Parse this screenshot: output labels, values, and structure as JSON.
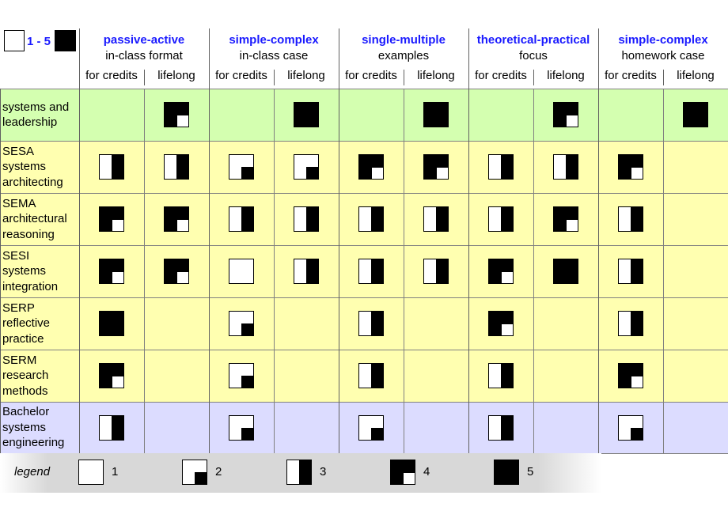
{
  "scale": {
    "label": "1 - 5"
  },
  "dimensions": [
    {
      "title": "passive-active",
      "subtitle": "in-class format"
    },
    {
      "title": "simple-complex",
      "subtitle": "in-class case"
    },
    {
      "title": "single-multiple",
      "subtitle": "examples"
    },
    {
      "title": "theoretical-practical",
      "subtitle": "focus"
    },
    {
      "title": "simple-complex",
      "subtitle": "homework case"
    }
  ],
  "subcolumns": [
    "for credits",
    "lifelong"
  ],
  "rows": [
    {
      "lines": [
        "systems and",
        "leadership"
      ],
      "values": [
        0,
        4,
        0,
        5,
        0,
        5,
        0,
        4,
        0,
        5
      ]
    },
    {
      "lines": [
        "SESA",
        "systems",
        "architecting"
      ],
      "values": [
        3,
        3,
        2,
        2,
        4,
        4,
        3,
        3,
        4,
        0
      ]
    },
    {
      "lines": [
        "SEMA",
        "architectural",
        "reasoning"
      ],
      "values": [
        4,
        4,
        3,
        3,
        3,
        3,
        3,
        4,
        3,
        0
      ]
    },
    {
      "lines": [
        "SESI",
        "systems",
        "integration"
      ],
      "values": [
        4,
        4,
        1,
        3,
        3,
        3,
        4,
        5,
        3,
        0
      ]
    },
    {
      "lines": [
        "SERP",
        "reflective",
        "practice"
      ],
      "values": [
        5,
        0,
        2,
        0,
        3,
        0,
        4,
        0,
        3,
        0
      ]
    },
    {
      "lines": [
        "SERM",
        "research",
        "methods"
      ],
      "values": [
        4,
        0,
        2,
        0,
        3,
        0,
        3,
        0,
        4,
        0
      ]
    },
    {
      "lines": [
        "Bachelor",
        "systems",
        "engineering"
      ],
      "values": [
        3,
        0,
        2,
        0,
        2,
        0,
        3,
        0,
        2,
        0
      ]
    }
  ],
  "row_colors": [
    "#d4ffb0",
    "#ffffb0",
    "#ffffb0",
    "#ffffb0",
    "#ffffb0",
    "#ffffb0",
    "#dcdcff"
  ],
  "legend": {
    "label": "legend",
    "items": [
      "1",
      "2",
      "3",
      "4",
      "5"
    ]
  }
}
